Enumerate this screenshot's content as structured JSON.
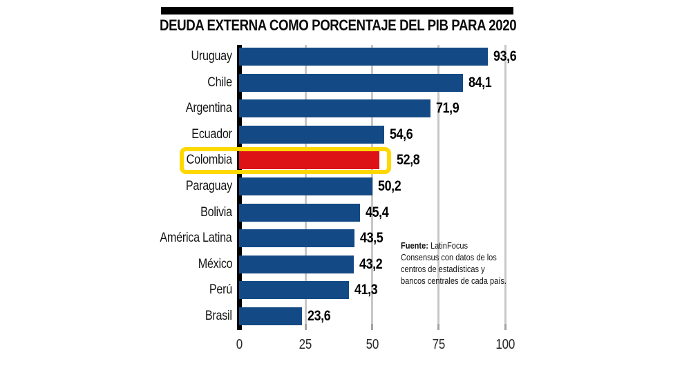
{
  "title": "DEUDA EXTERNA COMO PORCENTAJE DEL PIB PARA 2020",
  "colors": {
    "bar": "#134a85",
    "highlight_bar": "#dd1217",
    "highlight_box": "#ffd800",
    "axis": "#000000",
    "gridline": "#c7c7c7",
    "title_rule": "#000000"
  },
  "source": {
    "label": "Fuente:",
    "line1_rest": " LatinFocus",
    "lines": [
      "Consensus con datos de los",
      "centros de estadísticas y",
      "bancos centrales de cada país."
    ]
  },
  "x_axis": {
    "tick_values": [
      0,
      25,
      50,
      75,
      100
    ],
    "tick_labels": [
      "0",
      "25",
      "50",
      "75",
      "100"
    ]
  },
  "chart_data": {
    "type": "bar",
    "orientation": "horizontal",
    "title": "DEUDA EXTERNA COMO PORCENTAJE DEL PIB PARA 2020",
    "categories": [
      "Uruguay",
      "Chile",
      "Argentina",
      "Ecuador",
      "Colombia",
      "Paraguay",
      "Bolivia",
      "América Latina",
      "México",
      "Perú",
      "Brasil"
    ],
    "values": [
      93.6,
      84.1,
      71.9,
      54.6,
      52.8,
      50.2,
      45.4,
      43.5,
      43.2,
      41.3,
      23.6
    ],
    "value_labels": [
      "93,6",
      "84,1",
      "71,9",
      "54,6",
      "52,8",
      "50,2",
      "45,4",
      "43,5",
      "43,2",
      "41,3",
      "23,6"
    ],
    "highlighted_category": "Colombia",
    "xlim": [
      0,
      100
    ],
    "grid": true,
    "legend": false,
    "source_text": "Fuente: LatinFocus Consensus con datos de los centros de estadísticas y bancos centrales de cada país."
  }
}
